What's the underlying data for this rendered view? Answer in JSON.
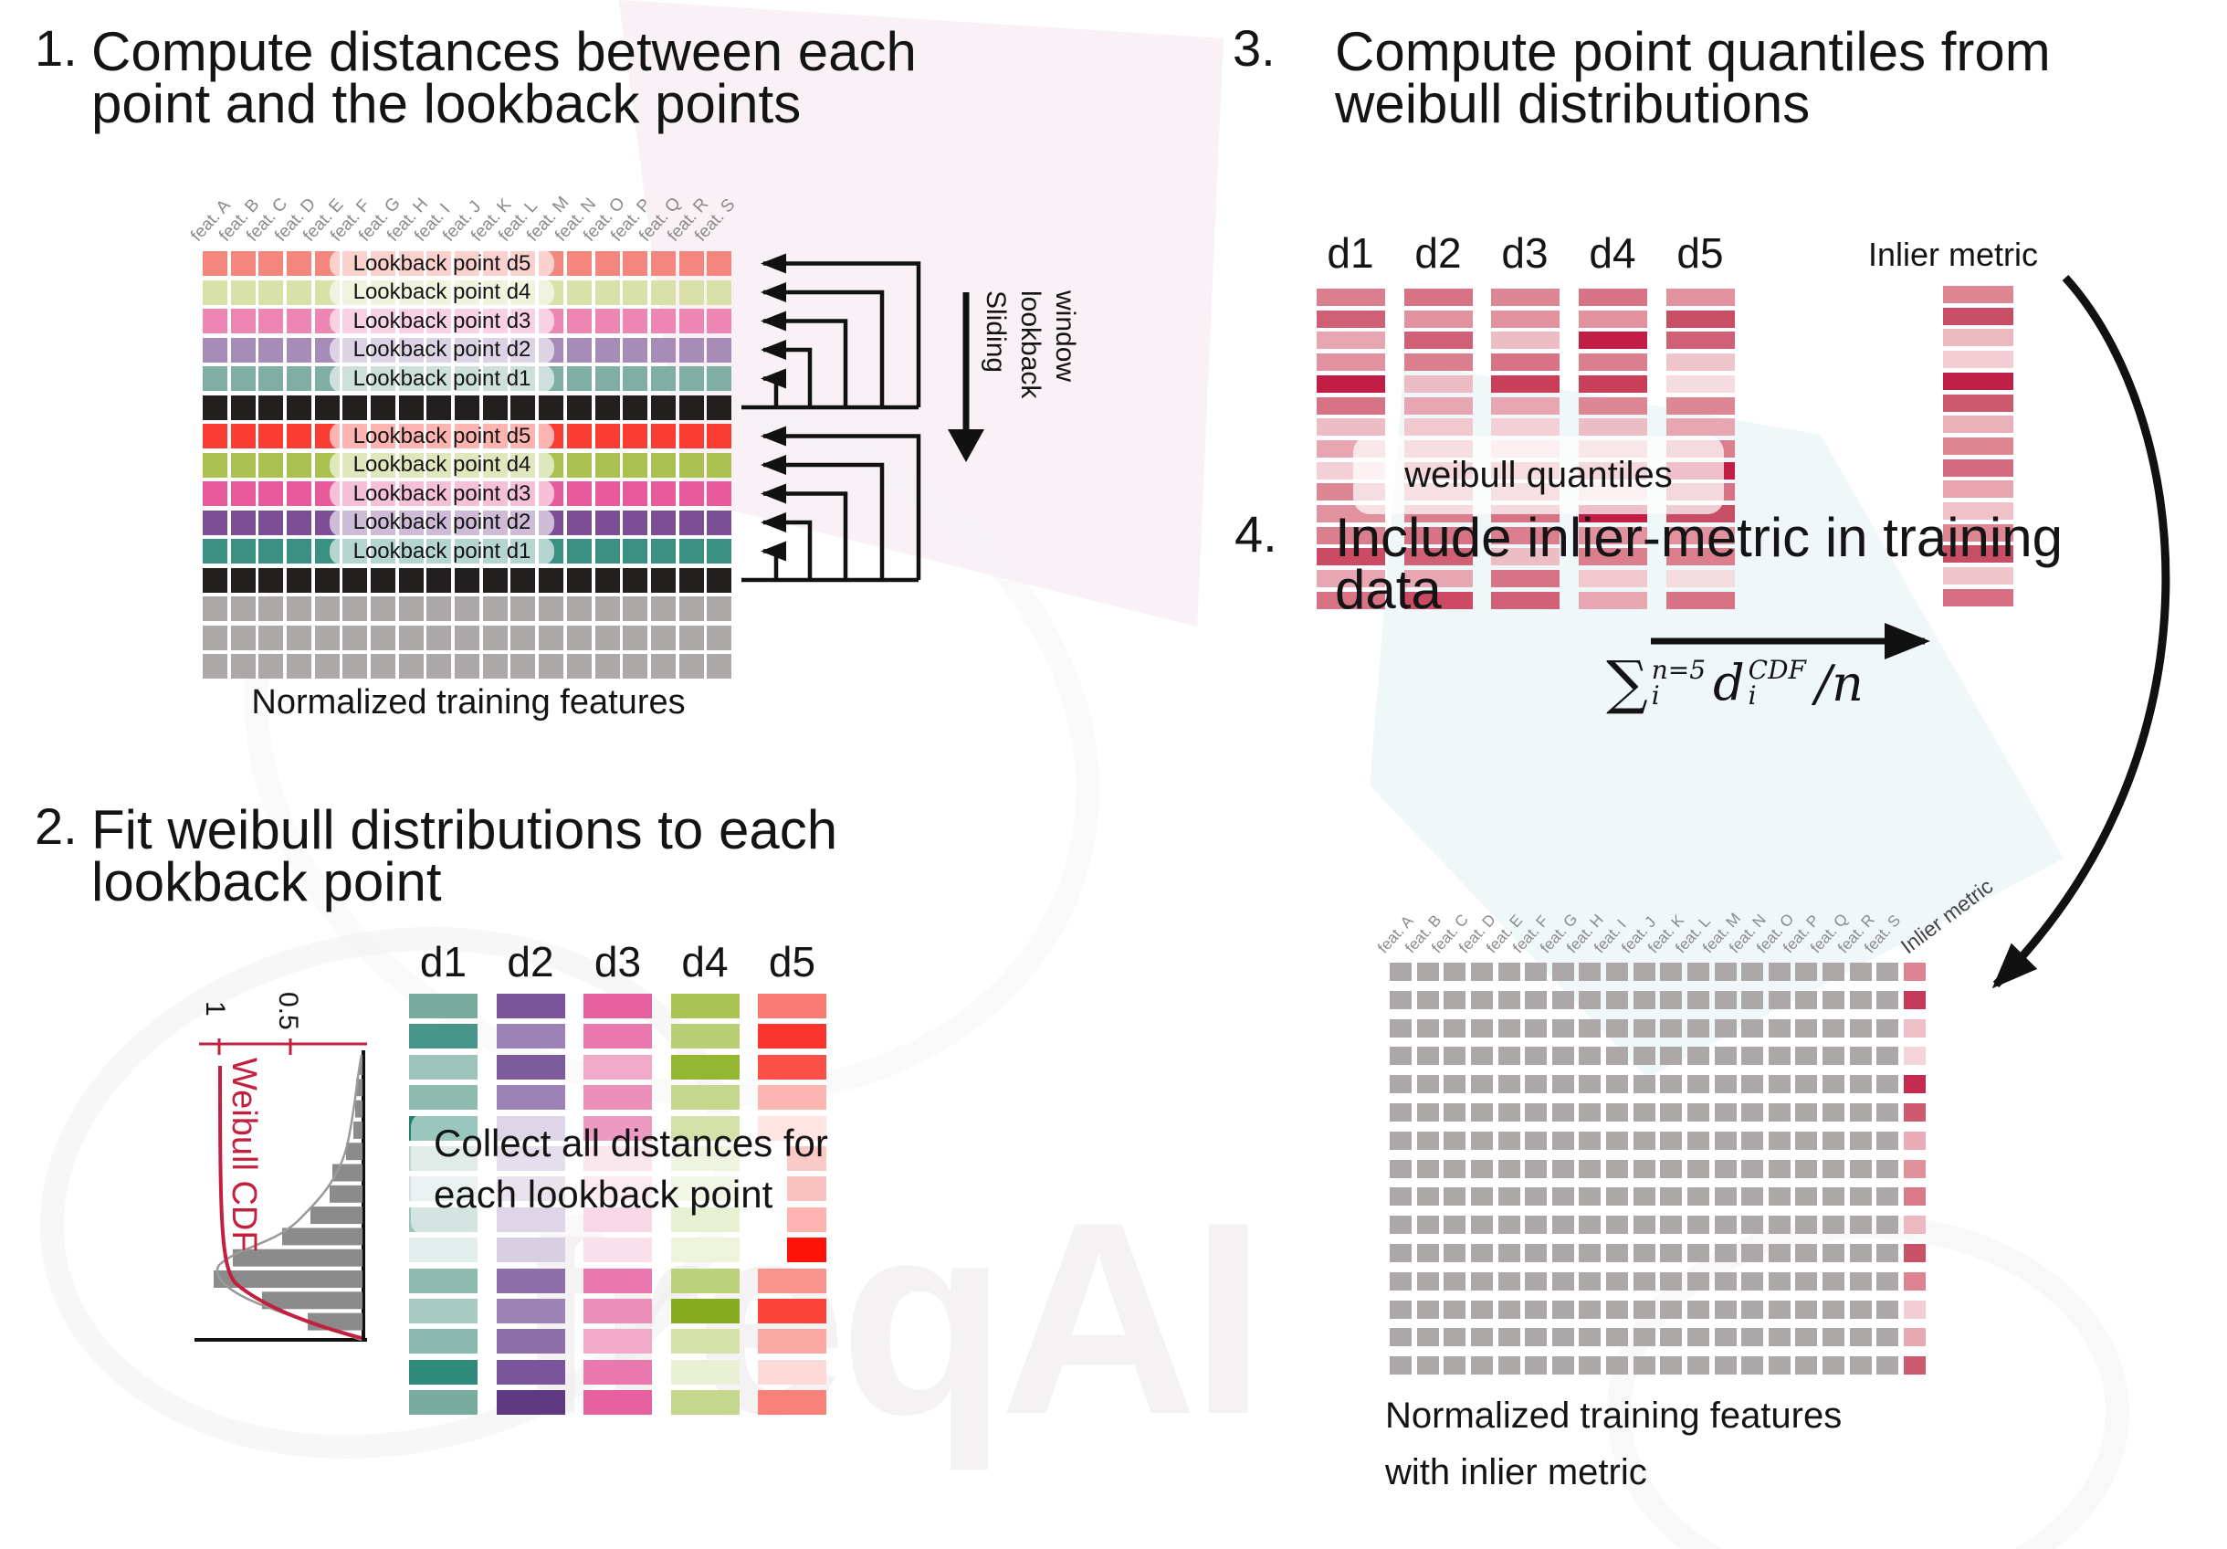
{
  "watermark": {
    "text": "freqAI"
  },
  "feature_labels": [
    "feat. A",
    "feat. B",
    "feat. C",
    "feat. D",
    "feat. E",
    "feat. F",
    "feat. G",
    "feat. H",
    "feat. I",
    "feat. J",
    "feat. K",
    "feat. L",
    "feat. M",
    "feat. N",
    "feat. O",
    "feat. P",
    "feat. Q",
    "feat. R",
    "feat. S"
  ],
  "section1": {
    "number": "1.",
    "title_lines": [
      "Compute distances between each",
      "point and the lookback points"
    ],
    "caption": "Normalized training features",
    "sliding_lines": [
      "Sliding",
      "lookback",
      "window"
    ],
    "rows": [
      {
        "color": "#F4867D",
        "label": "Lookback point d5"
      },
      {
        "color": "#D7E1A8",
        "label": "Lookback point d4"
      },
      {
        "color": "#ED86B3",
        "label": "Lookback point d3"
      },
      {
        "color": "#A78CB7",
        "label": "Lookback point d2"
      },
      {
        "color": "#7FAEA4",
        "label": "Lookback point d1"
      },
      {
        "color": "#231F1E",
        "label": null
      },
      {
        "color": "#FB3C33",
        "label": "Lookback point d5"
      },
      {
        "color": "#ABC14F",
        "label": "Lookback point d4"
      },
      {
        "color": "#E85A9C",
        "label": "Lookback point d3"
      },
      {
        "color": "#7C4E96",
        "label": "Lookback point d2"
      },
      {
        "color": "#3A9183",
        "label": "Lookback point d1"
      },
      {
        "color": "#231F1E",
        "label": null
      },
      {
        "color": "#ACA8A7",
        "label": null
      },
      {
        "color": "#ACA8A7",
        "label": null
      },
      {
        "color": "#ACA8A7",
        "label": null
      }
    ]
  },
  "section2": {
    "number": "2.",
    "title_lines": [
      "Fit weibull distributions to each",
      "lookback point"
    ],
    "note_lines": [
      "Collect all distances for",
      "each lookback point"
    ],
    "plot": {
      "ylabel": "Weibull CDF",
      "ticks": [
        "1",
        "0.5"
      ],
      "hist": [
        3,
        7,
        8,
        10,
        18,
        33,
        36,
        57,
        88,
        142,
        163,
        110,
        60
      ],
      "curve_color": "#C2203E",
      "bar_color": "#8B8B8B"
    },
    "columns": [
      {
        "name": "d1",
        "bars": [
          "#79AB9E",
          "#47968A",
          "#9FC4BB",
          "#8FBAB0",
          "#1F8170",
          "#BCD5CF",
          "#CFE2DE",
          "#9FC4BB",
          "#E2EEEB",
          "#8FBAB0",
          "#A8CAC2",
          "#8ABAAF",
          "#2E8B7A",
          "#79AB9E"
        ]
      },
      {
        "name": "d2",
        "bars": [
          "#7B559B",
          "#9C82B5",
          "#7D5A9C",
          "#9C82B5",
          "#B7A3C8",
          "#C6B7D4",
          "#CEC1DA",
          "#B7A3C8",
          "#D9CFE3",
          "#8E6FA9",
          "#9C82B5",
          "#8E6FA9",
          "#7B559B",
          "#5F3A82"
        ]
      },
      {
        "name": "d3",
        "bars": [
          "#E5609F",
          "#E878AD",
          "#F0A9C8",
          "#EC8FB9",
          "#D61F77",
          "#F6C7DA",
          "#F8D4E1",
          "#F0A9C8",
          "#FAE0EA",
          "#E878AD",
          "#EC8FB9",
          "#F0A9C8",
          "#E878AD",
          "#E5609F"
        ]
      },
      {
        "name": "d4",
        "bars": [
          "#A9C454",
          "#B9CF76",
          "#94B733",
          "#C4D78C",
          "#9FBE43",
          "#DCE7B8",
          "#E4EDC6",
          "#CCDD9B",
          "#EEF3DC",
          "#BCD17C",
          "#84AC1E",
          "#D4E1A9",
          "#EAF0D4",
          "#C4D78C"
        ]
      },
      {
        "name": "d5",
        "bars": [
          "#F77B72",
          "#FA352C",
          "#FA4F47",
          "#FBB6B1",
          "#FCC6C2",
          {
            "c": "#F88A82",
            "inset": true
          },
          {
            "c": "#F77B72",
            "inset": true
          },
          {
            "c": "#FA5950",
            "inset": true
          },
          {
            "c": "#FF1309",
            "inset": true
          },
          "#F8948D",
          "#FA443B",
          "#FBA9A3",
          "#FDDAD7",
          "#F8827A"
        ]
      }
    ]
  },
  "section3": {
    "number": "3.",
    "title_lines": [
      "Compute point quantiles from",
      "weibull distributions"
    ],
    "pill_text": "weibull quantiles",
    "inlier": {
      "label": "Inlier metric",
      "bars": [
        "#DE8793",
        "#C84E66",
        "#EDB9C1",
        "#F2CDD3",
        "#C22147",
        "#CE5A70",
        "#EAB0B9",
        "#DE8793",
        "#D36B7E",
        "#E7A3AE",
        "#EFC2C9",
        "#DE8793",
        "#C84E66",
        "#F0C6CC",
        "#D66F81"
      ]
    },
    "formula": {
      "sigma": "∑",
      "upper": "n=5",
      "lower": "i",
      "body": "d",
      "body_sup": "CDF",
      "body_sub": "i",
      "tail": "/n"
    },
    "columns": [
      {
        "name": "d1",
        "bars": [
          "#DB7F8E",
          "#D06075",
          "#E7A6B1",
          "#E2919F",
          "#C21E45",
          "#D87386",
          "#EDBDC5",
          "#E7A6B1",
          "#F2D0D5",
          "#DE8794",
          "#E2919F",
          "#DB7F8E",
          "#CC4A63",
          "#E7A6B1",
          "#D87386"
        ]
      },
      {
        "name": "d2",
        "bars": [
          "#D87386",
          "#E2919F",
          "#D06075",
          "#DB7F8E",
          "#EDBDC5",
          "#E7A6B1",
          "#F0C8CE",
          "#DE8794",
          "#D87386",
          "#E2919F",
          "#DB7F8E",
          "#D87386",
          "#D06075",
          "#E7A6B1",
          "#CC4A63"
        ]
      },
      {
        "name": "d3",
        "bars": [
          "#DE8794",
          "#E2919F",
          "#EDBDC5",
          "#D87386",
          "#C93F5A",
          "#E7A6B1",
          "#F2D0D5",
          "#EFC4CB",
          "#DE8794",
          "#E2919F",
          "#D87386",
          "#DB7F8E",
          "#EDBDC5",
          "#D87386",
          "#D06075"
        ]
      },
      {
        "name": "d4",
        "bars": [
          "#D87386",
          "#E2919F",
          "#C21E45",
          "#DB7F8E",
          "#C93F5A",
          "#DE8794",
          "#EDBDC5",
          "#E7A6B1",
          "#D87386",
          "#F2D0D5",
          "#C21E45",
          "#E2919F",
          "#DB7F8E",
          "#F0C8CE",
          "#E7A6B1"
        ]
      },
      {
        "name": "d5",
        "bars": [
          "#E2919F",
          "#C84E66",
          "#D06075",
          "#EFC4CB",
          "#F5DCE0",
          "#DE8794",
          "#E7A6B1",
          "#DB7F8E",
          "#C21E45",
          "#D87386",
          "#C84E66",
          "#E2919F",
          "#DB7F8E",
          "#F5DCE0",
          "#D87386"
        ]
      }
    ]
  },
  "section4": {
    "number": "4.",
    "title_lines": [
      "Include inlier-metric in training",
      "data"
    ],
    "inlier_header": "Inlier metric",
    "caption_lines": [
      "Normalized training features",
      "with inlier metric"
    ],
    "grid_color": "#ACA8A7",
    "grid_rows": 15,
    "inlier_bars": [
      "#DC8290",
      "#C43A58",
      "#EFBFC7",
      "#F4D4D9",
      "#C52B50",
      "#CE5A70",
      "#E9ABB5",
      "#E1909D",
      "#D97A89",
      "#EDB9C1",
      "#C95268",
      "#DC8290",
      "#F2CDD3",
      "#E8A8B2",
      "#CC5A6E"
    ]
  }
}
